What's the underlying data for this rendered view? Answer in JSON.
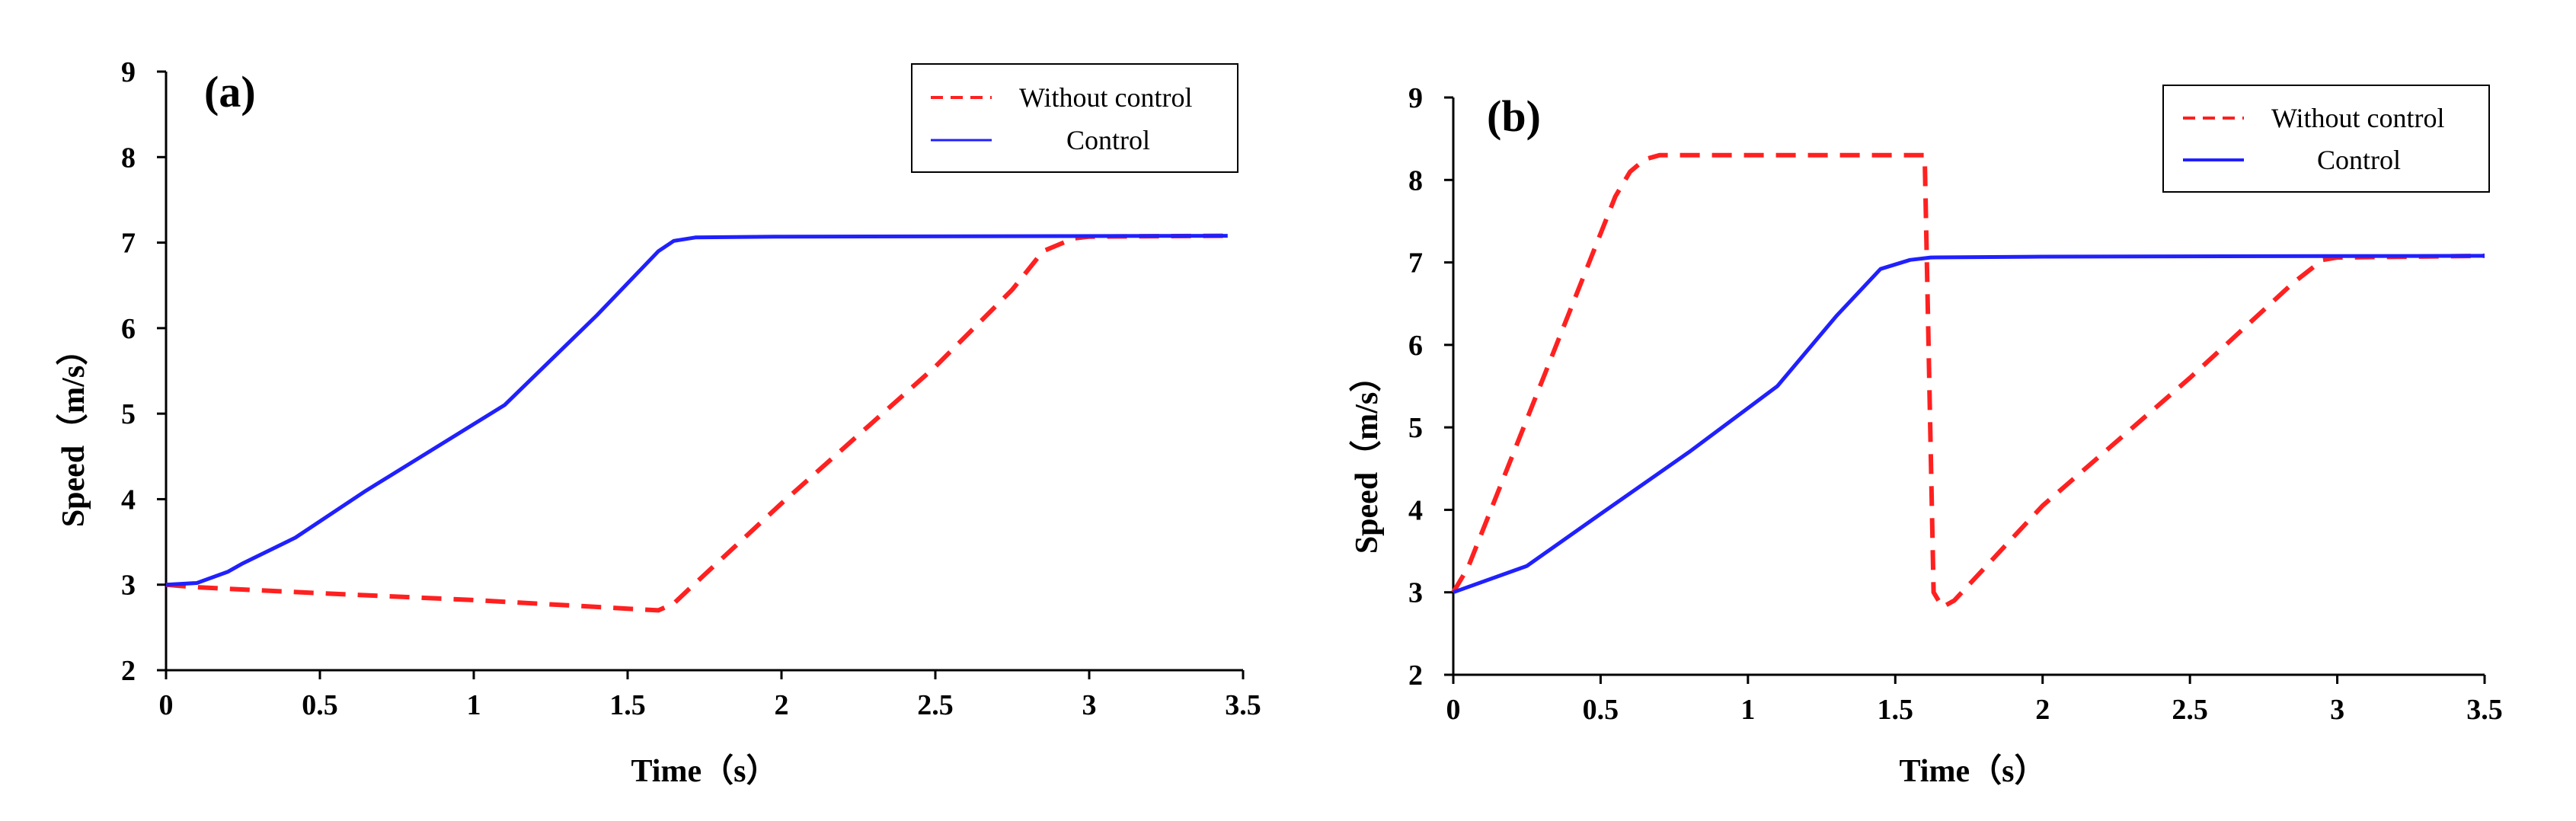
{
  "chart_data": [
    {
      "type": "line",
      "panel_label": "(a)",
      "xlabel": "Time（s）",
      "ylabel": "Speed（m/s）",
      "xlim": [
        0,
        3.5
      ],
      "ylim": [
        2,
        9
      ],
      "xticks": [
        "0",
        "0.5",
        "1",
        "1.5",
        "2",
        "2.5",
        "3",
        "3.5"
      ],
      "yticks": [
        "2",
        "3",
        "4",
        "5",
        "6",
        "7",
        "8",
        "9"
      ],
      "legend_position": "top-right",
      "series": [
        {
          "name": "Without control",
          "color": "#ff2020",
          "style": "dashed",
          "x": [
            0,
            0.1,
            0.5,
            1.0,
            1.5,
            1.6,
            1.65,
            1.7,
            2.0,
            2.5,
            2.75,
            2.85,
            2.95,
            3.0,
            3.45
          ],
          "y": [
            3.0,
            2.97,
            2.9,
            2.82,
            2.72,
            2.7,
            2.78,
            2.95,
            3.95,
            5.55,
            6.45,
            6.9,
            7.05,
            7.07,
            7.08
          ]
        },
        {
          "name": "Control",
          "color": "#2020ff",
          "style": "solid",
          "x": [
            0,
            0.1,
            0.2,
            0.25,
            0.42,
            0.65,
            1.1,
            1.4,
            1.6,
            1.65,
            1.72,
            2.0,
            3.45
          ],
          "y": [
            3.0,
            3.02,
            3.15,
            3.25,
            3.55,
            4.1,
            5.1,
            6.15,
            6.9,
            7.02,
            7.06,
            7.07,
            7.08
          ]
        }
      ]
    },
    {
      "type": "line",
      "panel_label": "(b)",
      "xlabel": "Time（s）",
      "ylabel": "Speed（m/s）",
      "xlim": [
        0,
        3.5
      ],
      "ylim": [
        2,
        9
      ],
      "xticks": [
        "0",
        "0.5",
        "1",
        "1.5",
        "2",
        "2.5",
        "3",
        "3.5"
      ],
      "yticks": [
        "2",
        "3",
        "4",
        "5",
        "6",
        "7",
        "8",
        "9"
      ],
      "legend_position": "top-right",
      "series": [
        {
          "name": "Without control",
          "color": "#ff2020",
          "style": "dashed",
          "x": [
            0,
            0.05,
            0.55,
            0.6,
            0.65,
            0.7,
            1.6,
            1.6,
            1.63,
            1.66,
            1.7,
            2.0,
            2.5,
            2.85,
            2.95,
            3.0,
            3.5
          ],
          "y": [
            3.0,
            3.3,
            7.8,
            8.1,
            8.25,
            8.3,
            8.3,
            8.25,
            3.0,
            2.82,
            2.9,
            4.05,
            5.6,
            6.75,
            7.03,
            7.06,
            7.08
          ]
        },
        {
          "name": "Control",
          "color": "#2020ff",
          "style": "solid",
          "x": [
            0,
            0.25,
            0.5,
            0.8,
            1.1,
            1.3,
            1.45,
            1.55,
            1.62,
            2.0,
            3.5
          ],
          "y": [
            3.0,
            3.32,
            3.95,
            4.7,
            5.5,
            6.35,
            6.92,
            7.03,
            7.06,
            7.07,
            7.08
          ]
        }
      ]
    }
  ]
}
